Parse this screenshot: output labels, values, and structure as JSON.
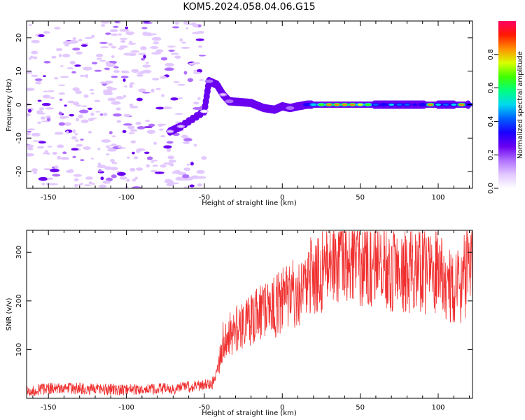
{
  "title": "KOM5.2024.058.04.06.G15",
  "colors": {
    "snr_line": "#f03030",
    "colormap": [
      "#ffffff",
      "#e2c8ff",
      "#b070ff",
      "#6a00f0",
      "#1a00ff",
      "#0060ff",
      "#00d8f0",
      "#00ff80",
      "#40ff00",
      "#d8ff00",
      "#ff9000",
      "#ff1a00",
      "#ff0064"
    ]
  },
  "chart_data": [
    {
      "type": "heatmap",
      "xlabel": "Height of straight line (km)",
      "ylabel": "Frequency (Hz)",
      "xlim": [
        -164,
        122
      ],
      "ylim": [
        -25,
        25
      ],
      "xticks": [
        "-150",
        "-100",
        "-50",
        "0",
        "50",
        "100"
      ],
      "xtick_values": [
        -150,
        -100,
        -50,
        0,
        50,
        100
      ],
      "yticks": [
        "-20",
        "-10",
        "0",
        "10",
        "20"
      ],
      "ytick_values": [
        -20,
        -10,
        0,
        10,
        20
      ],
      "colorbar": {
        "label": "Normalized spectral amplitude",
        "ticks": [
          "0.0",
          "0.2",
          "0.4",
          "0.6",
          "0.8"
        ],
        "tick_values": [
          0.0,
          0.2,
          0.4,
          0.6,
          0.8
        ],
        "range": [
          0,
          1
        ]
      },
      "noise_region_x": [
        -164,
        -50
      ],
      "signal_track": [
        {
          "x": -72,
          "y": -8,
          "amp": 0.15
        },
        {
          "x": -65,
          "y": -6.5,
          "amp": 0.12
        },
        {
          "x": -50,
          "y": -2,
          "amp": 0.08
        },
        {
          "x": -47,
          "y": 7,
          "amp": 0.18
        },
        {
          "x": -42,
          "y": 6,
          "amp": 0.25
        },
        {
          "x": -38,
          "y": 3,
          "amp": 0.15
        },
        {
          "x": -34,
          "y": 1,
          "amp": 0.2
        },
        {
          "x": -28,
          "y": 0.8,
          "amp": 0.3
        },
        {
          "x": -20,
          "y": 0.5,
          "amp": 0.3
        },
        {
          "x": -12,
          "y": -1,
          "amp": 0.3
        },
        {
          "x": -5,
          "y": -1.5,
          "amp": 0.25
        },
        {
          "x": 0,
          "y": -0.5,
          "amp": 0.25
        },
        {
          "x": 5,
          "y": -1,
          "amp": 0.2
        },
        {
          "x": 10,
          "y": -0.5,
          "amp": 0.3
        },
        {
          "x": 16,
          "y": 0,
          "amp": 0.4
        },
        {
          "x": 20,
          "y": 0,
          "amp": 0.55
        },
        {
          "x": 25,
          "y": 0,
          "amp": 0.7
        },
        {
          "x": 30,
          "y": 0,
          "amp": 0.85
        },
        {
          "x": 35,
          "y": 0,
          "amp": 0.88
        },
        {
          "x": 40,
          "y": 0,
          "amp": 0.9
        },
        {
          "x": 45,
          "y": 0,
          "amp": 0.85
        },
        {
          "x": 50,
          "y": 0,
          "amp": 0.8
        },
        {
          "x": 55,
          "y": 0,
          "amp": 0.7
        },
        {
          "x": 60,
          "y": 0,
          "amp": 0.45
        },
        {
          "x": 65,
          "y": 0,
          "amp": 0.4
        },
        {
          "x": 70,
          "y": 0,
          "amp": 0.5
        },
        {
          "x": 75,
          "y": 0,
          "amp": 0.45
        },
        {
          "x": 80,
          "y": 0,
          "amp": 0.45
        },
        {
          "x": 85,
          "y": 0,
          "amp": 0.35
        },
        {
          "x": 90,
          "y": 0,
          "amp": 0.4
        },
        {
          "x": 95,
          "y": 0,
          "amp": 0.85
        },
        {
          "x": 100,
          "y": 0,
          "amp": 0.5
        },
        {
          "x": 105,
          "y": 0,
          "amp": 0.45
        },
        {
          "x": 110,
          "y": 0,
          "amp": 0.5
        },
        {
          "x": 115,
          "y": 0,
          "amp": 0.85
        },
        {
          "x": 120,
          "y": 0,
          "amp": 0.4
        }
      ]
    },
    {
      "type": "line",
      "xlabel": "Height of straight line (km)",
      "ylabel": "SNR (v/v)",
      "xlim": [
        -164,
        122
      ],
      "ylim": [
        0,
        345
      ],
      "xticks": [
        "-150",
        "-100",
        "-50",
        "0",
        "50",
        "100"
      ],
      "xtick_values": [
        -150,
        -100,
        -50,
        0,
        50,
        100
      ],
      "yticks": [
        "100",
        "200",
        "300"
      ],
      "ytick_values": [
        100,
        200,
        300
      ],
      "series": [
        {
          "x": [
            -164,
            -150,
            -130,
            -110,
            -90,
            -70,
            -55,
            -45,
            -41,
            -38,
            -30,
            -20,
            -10,
            0,
            10,
            20,
            30,
            40,
            50,
            60,
            70,
            80,
            90,
            100,
            110,
            115,
            122
          ],
          "values": [
            15,
            20,
            20,
            18,
            18,
            20,
            25,
            30,
            60,
            120,
            140,
            160,
            180,
            200,
            220,
            250,
            280,
            300,
            290,
            285,
            270,
            265,
            260,
            255,
            220,
            240,
            280
          ]
        }
      ]
    }
  ]
}
